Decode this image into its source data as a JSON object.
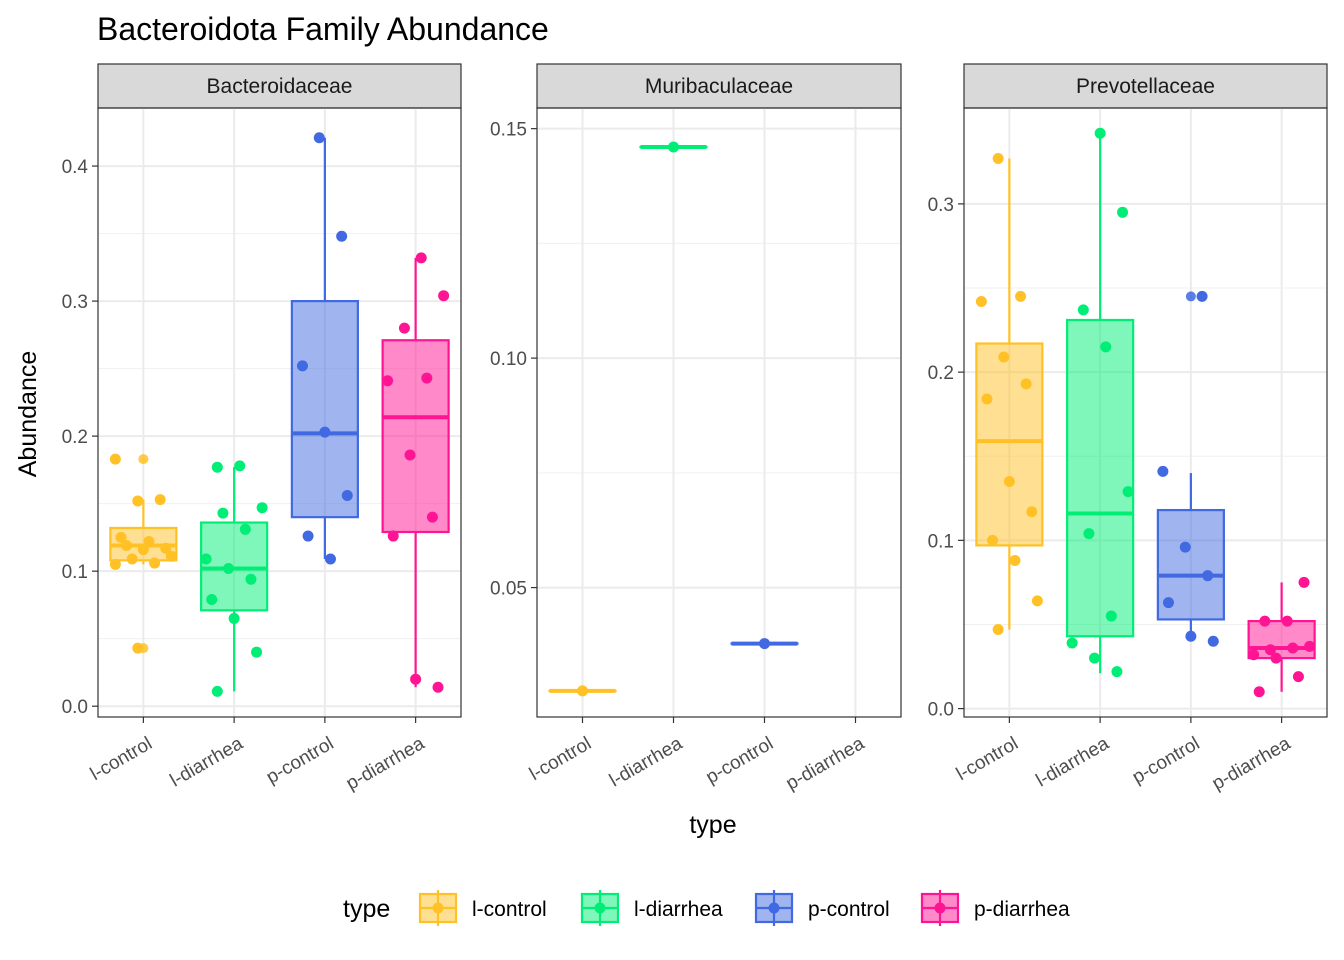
{
  "chart_data": {
    "type": "boxplot",
    "title": "Bacteroidota Family Abundance",
    "xlabel": "type",
    "ylabel": "Abundance",
    "categories": [
      "l-control",
      "l-diarrhea",
      "p-control",
      "p-diarrhea"
    ],
    "colors": {
      "l-control": "#FFC125",
      "l-diarrhea": "#00EE76",
      "p-control": "#4169E1",
      "p-diarrhea": "#FF1493"
    },
    "legend": {
      "title": "type",
      "position": "bottom",
      "entries": [
        "l-control",
        "l-diarrhea",
        "p-control",
        "p-diarrhea"
      ]
    },
    "grid": true,
    "facets": [
      {
        "name": "Bacteroidaceae",
        "ylim": [
          -0.008,
          0.443
        ],
        "yticks": [
          0.0,
          0.1,
          0.2,
          0.3,
          0.4
        ],
        "ytick_labels": [
          "0.0",
          "0.1",
          "0.2",
          "0.3",
          "0.4"
        ],
        "boxes": [
          {
            "category": "l-control",
            "min": 0.105,
            "q1": 0.108,
            "median": 0.119,
            "q3": 0.132,
            "max": 0.153,
            "outliers": [
              0.183,
              0.043
            ],
            "points": [
              0.183,
              0.152,
              0.153,
              0.125,
              0.116,
              0.117,
              0.119,
              0.122,
              0.111,
              0.109,
              0.106,
              0.105,
              0.043
            ]
          },
          {
            "category": "l-diarrhea",
            "min": 0.011,
            "q1": 0.071,
            "median": 0.102,
            "q3": 0.136,
            "max": 0.177,
            "outliers": [],
            "points": [
              0.177,
              0.178,
              0.147,
              0.143,
              0.131,
              0.109,
              0.102,
              0.094,
              0.079,
              0.065,
              0.04,
              0.011
            ]
          },
          {
            "category": "p-control",
            "min": 0.109,
            "q1": 0.14,
            "median": 0.202,
            "q3": 0.3,
            "max": 0.421,
            "outliers": [],
            "points": [
              0.421,
              0.348,
              0.252,
              0.203,
              0.156,
              0.126,
              0.109
            ]
          },
          {
            "category": "p-diarrhea",
            "min": 0.014,
            "q1": 0.129,
            "median": 0.214,
            "q3": 0.271,
            "max": 0.332,
            "outliers": [],
            "points": [
              0.332,
              0.304,
              0.28,
              0.243,
              0.241,
              0.186,
              0.14,
              0.126,
              0.02,
              0.014
            ]
          }
        ]
      },
      {
        "name": "Muribaculaceae",
        "ylim": [
          0.0218,
          0.1545
        ],
        "yticks": [
          0.05,
          0.1,
          0.15
        ],
        "ytick_labels": [
          "0.05",
          "0.10",
          "0.15"
        ],
        "boxes": [
          {
            "category": "l-control",
            "min": 0.0275,
            "q1": 0.0275,
            "median": 0.0275,
            "q3": 0.0275,
            "max": 0.0275,
            "outliers": [],
            "points": [
              0.0275
            ]
          },
          {
            "category": "l-diarrhea",
            "min": 0.146,
            "q1": 0.146,
            "median": 0.146,
            "q3": 0.146,
            "max": 0.146,
            "outliers": [],
            "points": [
              0.146
            ]
          },
          {
            "category": "p-control",
            "min": 0.0378,
            "q1": 0.0378,
            "median": 0.0378,
            "q3": 0.0378,
            "max": 0.0378,
            "outliers": [],
            "points": [
              0.0378
            ]
          }
        ]
      },
      {
        "name": "Prevotellaceae",
        "ylim": [
          -0.005,
          0.357
        ],
        "yticks": [
          0.0,
          0.1,
          0.2,
          0.3
        ],
        "ytick_labels": [
          "0.0",
          "0.1",
          "0.2",
          "0.3"
        ],
        "boxes": [
          {
            "category": "l-control",
            "min": 0.047,
            "q1": 0.097,
            "median": 0.159,
            "q3": 0.217,
            "max": 0.327,
            "outliers": [],
            "points": [
              0.327,
              0.245,
              0.242,
              0.209,
              0.193,
              0.184,
              0.135,
              0.117,
              0.1,
              0.088,
              0.064,
              0.047
            ]
          },
          {
            "category": "l-diarrhea",
            "min": 0.021,
            "q1": 0.043,
            "median": 0.116,
            "q3": 0.231,
            "max": 0.341,
            "outliers": [],
            "points": [
              0.342,
              0.295,
              0.237,
              0.215,
              0.129,
              0.104,
              0.055,
              0.039,
              0.03,
              0.022
            ]
          },
          {
            "category": "p-control",
            "min": 0.04,
            "q1": 0.053,
            "median": 0.079,
            "q3": 0.118,
            "max": 0.14,
            "outliers": [
              0.245
            ],
            "points": [
              0.245,
              0.141,
              0.096,
              0.079,
              0.063,
              0.043,
              0.04
            ]
          },
          {
            "category": "p-diarrhea",
            "min": 0.01,
            "q1": 0.03,
            "median": 0.036,
            "q3": 0.052,
            "max": 0.075,
            "outliers": [],
            "points": [
              0.075,
              0.052,
              0.052,
              0.037,
              0.035,
              0.036,
              0.032,
              0.03,
              0.019,
              0.01
            ]
          }
        ]
      }
    ]
  }
}
